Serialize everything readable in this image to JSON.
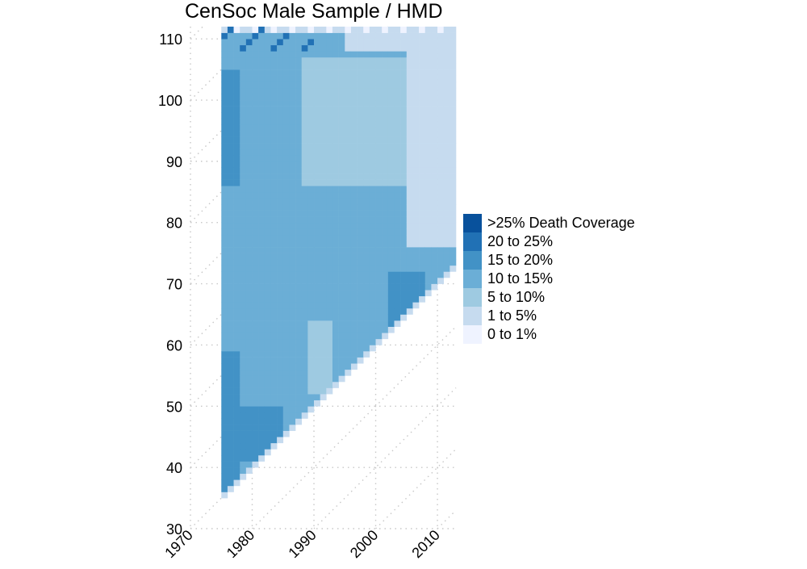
{
  "chart_data": {
    "type": "heatmap",
    "title": "CenSoc Male Sample / HMD",
    "xlabel": "",
    "ylabel": "",
    "x_range": [
      1970,
      2013
    ],
    "y_range": [
      30,
      112
    ],
    "x_ticks": [
      "1970",
      "1980",
      "1990",
      "2000",
      "2010"
    ],
    "y_ticks": [
      "30",
      "40",
      "50",
      "60",
      "70",
      "80",
      "90",
      "100",
      "110"
    ],
    "grid": "dotted",
    "diagonal_lines": true,
    "legend_position": "right",
    "x_years": [
      1975,
      2012
    ],
    "age_range": [
      35,
      111
    ],
    "legend": [
      {
        "label": ">25% Death Coverage",
        "color": "#08519c"
      },
      {
        "label": "20 to 25%",
        "color": "#2171b5"
      },
      {
        "label": "15 to 20%",
        "color": "#4292c6"
      },
      {
        "label": "10 to 15%",
        "color": "#6baed6"
      },
      {
        "label": "5 to 10%",
        "color": "#9ecae1"
      },
      {
        "label": "1 to 5%",
        "color": "#c6dbef"
      },
      {
        "label": "0 to 1%",
        "color": "#eff3ff"
      }
    ],
    "min_age_by_year": {
      "1975": 35,
      "1976": 36,
      "1977": 37,
      "1978": 38,
      "1979": 39,
      "1980": 40,
      "1981": 41,
      "1982": 42,
      "1983": 43,
      "1984": 44,
      "1985": 45,
      "1986": 46,
      "1987": 47,
      "1988": 48,
      "1989": 49,
      "1990": 50,
      "1991": 51,
      "1992": 52,
      "1993": 53,
      "1994": 54,
      "1995": 55,
      "1996": 56,
      "1997": 57,
      "1998": 58,
      "1999": 59,
      "2000": 60,
      "2001": 61,
      "2002": 62,
      "2003": 63,
      "2004": 64,
      "2005": 65,
      "2006": 66,
      "2007": 67,
      "2008": 68,
      "2009": 69,
      "2010": 70,
      "2011": 71,
      "2012": 72
    },
    "cell_bins_note": "bins: 0 = 0 to 1%, 1 = 1 to 5%, 2 = 5 to 10%, 3 = 10 to 15%, 4 = 15 to 20%, 5 = 20 to 25%, 6 = >25%",
    "regions": [
      {
        "bin": 4,
        "label": "15 to 20%",
        "x": [
          1975,
          1977
        ],
        "y": [
          36,
          58
        ]
      },
      {
        "bin": 4,
        "label": "15 to 20%",
        "x": [
          1975,
          1977
        ],
        "y": [
          86,
          104
        ]
      },
      {
        "bin": 4,
        "label": "15 to 20%",
        "x": [
          1977,
          1984
        ],
        "y": [
          41,
          49
        ]
      },
      {
        "bin": 4,
        "label": "15 to 20%",
        "x": [
          2002,
          2007
        ],
        "y": [
          63,
          71
        ]
      },
      {
        "bin": 2,
        "label": "5 to 10%",
        "x": [
          1988,
          2012
        ],
        "y": [
          86,
          106
        ]
      },
      {
        "bin": 2,
        "label": "5 to 10%",
        "x": [
          1989,
          1992
        ],
        "y": [
          52,
          63
        ]
      },
      {
        "bin": 1,
        "label": "1 to 5%",
        "x": [
          2005,
          2012
        ],
        "y": [
          76,
          111
        ]
      },
      {
        "bin": 1,
        "label": "1 to 5%",
        "x": [
          1975,
          2012
        ],
        "y": [
          111,
          111
        ]
      }
    ]
  }
}
